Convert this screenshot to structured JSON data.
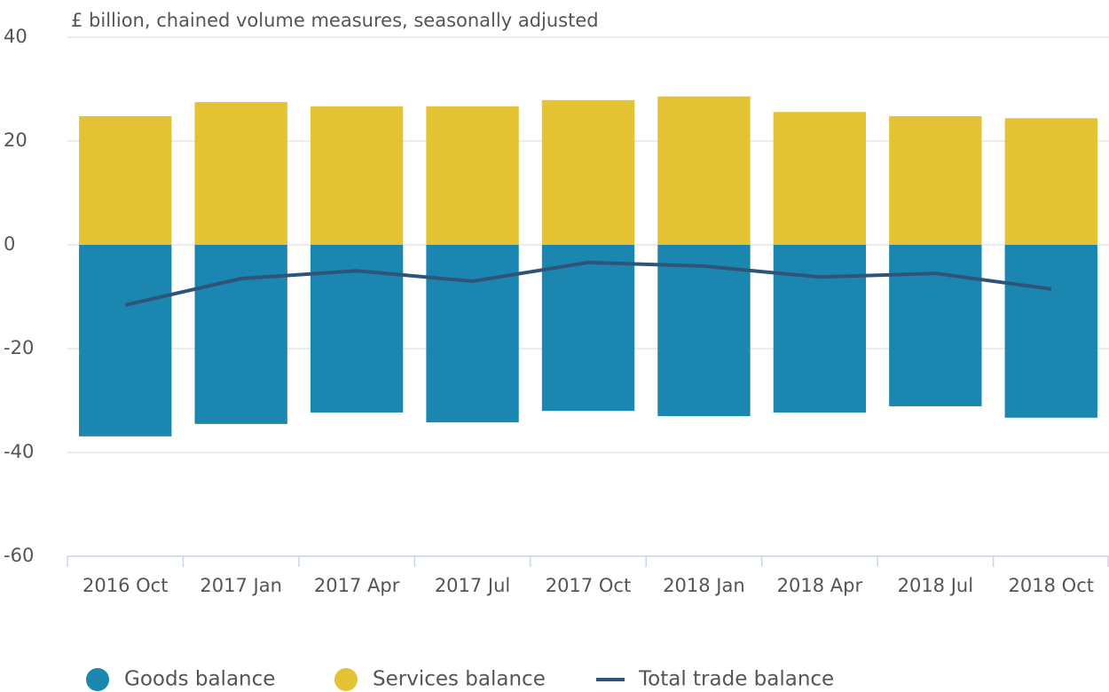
{
  "chart_data": {
    "type": "bar",
    "y_label": "£ billion, chained volume measures, seasonally adjusted",
    "categories": [
      "2016 Oct",
      "2017 Jan",
      "2017 Apr",
      "2017 Jul",
      "2017 Oct",
      "2018 Jan",
      "2018 Apr",
      "2018 Jul",
      "2018 Oct"
    ],
    "series": [
      {
        "name": "Goods balance",
        "color": "#1b86b0",
        "type": "bar",
        "values": [
          -36.9,
          -34.5,
          -32.3,
          -34.2,
          -32.0,
          -33.0,
          -32.3,
          -31.1,
          -33.3
        ]
      },
      {
        "name": "Services balance",
        "color": "#e3c234",
        "type": "bar",
        "values": [
          24.8,
          27.5,
          26.7,
          26.7,
          27.9,
          28.6,
          25.6,
          24.8,
          24.4
        ]
      },
      {
        "name": "Total trade balance",
        "color": "#2e5577",
        "type": "line",
        "values": [
          -11.6,
          -6.5,
          -5.0,
          -7.0,
          -3.4,
          -4.1,
          -6.2,
          -5.5,
          -8.5
        ]
      }
    ],
    "ylim": [
      -60,
      40
    ],
    "yticks": [
      -60,
      -40,
      -20,
      0,
      20,
      40
    ],
    "grid": true,
    "stacked": true,
    "legend": "bottom"
  }
}
